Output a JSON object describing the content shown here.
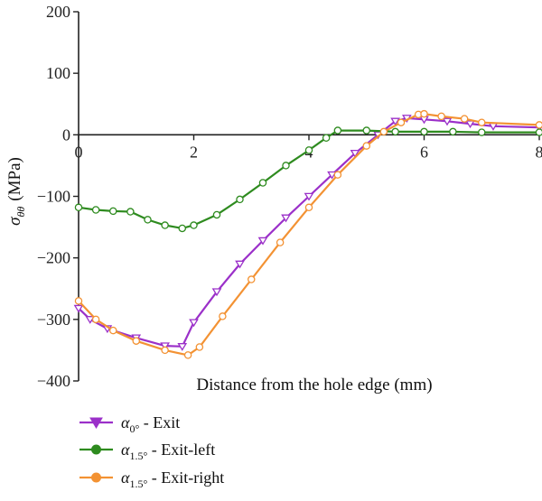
{
  "chart_data": {
    "type": "line",
    "xlabel": "Distance from the hole edge (mm)",
    "ylabel": {
      "symbol": "σ",
      "subscript": "θθ",
      "unit": "(MPa)"
    },
    "xlim": [
      0,
      8
    ],
    "ylim": [
      -400,
      200
    ],
    "x_ticks": [
      "0",
      "2",
      "4",
      "6",
      "8"
    ],
    "y_ticks": [
      "200",
      "100",
      "0",
      "−100",
      "−200",
      "−300",
      "−400"
    ],
    "x_tick_values": [
      0,
      2,
      4,
      6,
      8
    ],
    "y_tick_values": [
      200,
      100,
      0,
      -100,
      -200,
      -300,
      -400
    ],
    "grid": false,
    "legend_position": "bottom-left",
    "series": [
      {
        "name": "α0° - Exit",
        "legend": {
          "symbol": "α",
          "subscript": "0°",
          "text": " - Exit"
        },
        "color": "#9b30c9",
        "marker": "triangle-down",
        "x": [
          0,
          0.2,
          0.5,
          1.0,
          1.5,
          1.8,
          2.0,
          2.4,
          2.8,
          3.2,
          3.6,
          4.0,
          4.4,
          4.8,
          5.2,
          5.5,
          5.7,
          6.0,
          6.4,
          6.8,
          7.2,
          8.0
        ],
        "y": [
          -282,
          -300,
          -315,
          -330,
          -343,
          -344,
          -305,
          -255,
          -210,
          -172,
          -135,
          -100,
          -65,
          -30,
          0,
          22,
          27,
          25,
          22,
          18,
          14,
          12
        ]
      },
      {
        "name": "α1.5° - Exit-left",
        "legend": {
          "symbol": "α",
          "subscript": "1.5°",
          "text": " - Exit-left"
        },
        "color": "#2e8b1f",
        "marker": "circle",
        "x": [
          0,
          0.3,
          0.6,
          0.9,
          1.2,
          1.5,
          1.8,
          2.0,
          2.4,
          2.8,
          3.2,
          3.6,
          4.0,
          4.3,
          4.5,
          5.0,
          5.5,
          6.0,
          6.5,
          7.0,
          8.0
        ],
        "y": [
          -118,
          -122,
          -124,
          -125,
          -138,
          -147,
          -152,
          -147,
          -130,
          -105,
          -78,
          -50,
          -25,
          -5,
          7,
          7,
          5,
          5,
          5,
          4,
          4
        ]
      },
      {
        "name": "α1.5° - Exit-right",
        "legend": {
          "symbol": "α",
          "subscript": "1.5°",
          "text": " - Exit-right"
        },
        "color": "#f39233",
        "marker": "circle",
        "x": [
          0,
          0.3,
          0.6,
          1.0,
          1.5,
          1.9,
          2.1,
          2.5,
          3.0,
          3.5,
          4.0,
          4.5,
          5.0,
          5.3,
          5.6,
          5.9,
          6.0,
          6.3,
          6.7,
          7.0,
          8.0
        ],
        "y": [
          -270,
          -300,
          -318,
          -335,
          -350,
          -358,
          -345,
          -295,
          -235,
          -175,
          -118,
          -65,
          -18,
          5,
          20,
          33,
          34,
          30,
          26,
          20,
          16
        ]
      }
    ]
  }
}
